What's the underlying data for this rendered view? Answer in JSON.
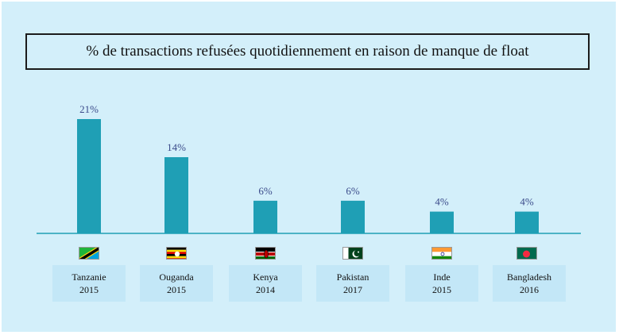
{
  "chart_data": {
    "type": "bar",
    "title": "% de transactions refusées quotidiennement en raison de manque de float",
    "categories": [
      "Tanzanie",
      "Ouganda",
      "Kenya",
      "Pakistan",
      "Inde",
      "Bangladesh"
    ],
    "years": [
      "2015",
      "2015",
      "2014",
      "2017",
      "2015",
      "2016"
    ],
    "values": [
      21,
      14,
      6,
      6,
      4,
      4
    ],
    "value_labels": [
      "21%",
      "14%",
      "6%",
      "6%",
      "4%",
      "4%"
    ],
    "flags": [
      "tanzania-flag-icon",
      "uganda-flag-icon",
      "kenya-flag-icon",
      "pakistan-flag-icon",
      "india-flag-icon",
      "bangladesh-flag-icon"
    ],
    "bar_color": "#1f9fb5",
    "ylim": [
      0,
      21
    ],
    "grid": false,
    "legend": "none"
  }
}
